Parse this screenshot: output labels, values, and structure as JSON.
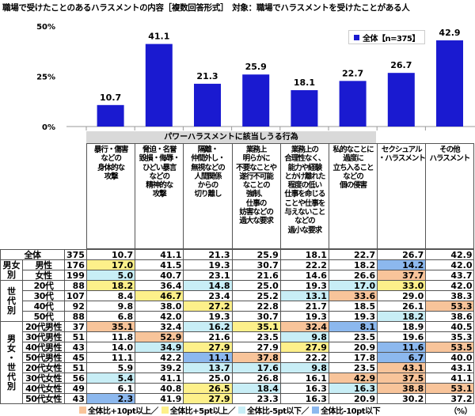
{
  "title": "職場で受けたことのあるハラスメントの内容［複数回答形式］　対象：職場でハラスメントを受けたことがある人",
  "group_header": "パワーハラスメントに該当しうる行為",
  "chart_data": {
    "type": "bar",
    "categories": [
      "暴行・傷害\nなどの\n身体的な\n攻撃",
      "脅迫・名誉\n毀損・侮辱・\nひどい暴言\nなどの\n精神的な\n攻撃",
      "隔離・\n仲間外し・\n無視などの\n人間関係\nからの\n切り離し",
      "業務上\n明らかに\n不要なことや\n遂行不可能\nなことの\n強制、\n仕事の\n妨害などの\n過大な要求",
      "業務上の\n合理性なく、\n能力や経験\nとかけ離れた\n程度の低い\n仕事を命じる\nことや仕事を\n与えないこと\nなどの\n過小な要求",
      "私的なことに\n過度に\n立ち入ること\nなどの\n個の侵害",
      "セクシュアル\n・ハラスメント",
      "その他\nハラスメント"
    ],
    "series": [
      {
        "name": "全体【n=375】",
        "values": [
          10.7,
          41.1,
          21.3,
          25.9,
          18.1,
          22.7,
          26.7,
          42.9
        ]
      }
    ],
    "ylim": [
      0,
      50
    ],
    "yticks": [
      "0%",
      "25%",
      "50%"
    ],
    "bar_color": "#1a1ad0",
    "legend": "top-right"
  },
  "table": {
    "rows": [
      {
        "group": "",
        "label": "全体",
        "n": "375",
        "values": [
          "10.7",
          "41.1",
          "21.3",
          "25.9",
          "18.1",
          "22.7",
          "26.7",
          "42.9"
        ],
        "hl": [
          0,
          0,
          0,
          0,
          0,
          0,
          0,
          0
        ]
      },
      {
        "group": "男女\n別",
        "label": "男性",
        "n": "176",
        "values": [
          "17.0",
          "41.5",
          "19.3",
          "30.7",
          "22.2",
          "18.2",
          "14.2",
          "42.0"
        ],
        "hl": [
          2,
          0,
          0,
          0,
          0,
          0,
          4,
          0
        ]
      },
      {
        "group": "",
        "label": "女性",
        "n": "199",
        "values": [
          "5.0",
          "40.7",
          "23.1",
          "21.6",
          "14.6",
          "26.6",
          "37.7",
          "43.7"
        ],
        "hl": [
          3,
          0,
          0,
          0,
          0,
          0,
          1,
          0
        ]
      },
      {
        "group": "世\n代\n別",
        "label": "20代",
        "n": "88",
        "values": [
          "18.2",
          "36.4",
          "14.8",
          "25.0",
          "19.3",
          "17.0",
          "33.0",
          "42.0"
        ],
        "hl": [
          2,
          0,
          3,
          0,
          0,
          3,
          2,
          0
        ]
      },
      {
        "group": "",
        "label": "30代",
        "n": "107",
        "values": [
          "8.4",
          "46.7",
          "23.4",
          "25.2",
          "13.1",
          "33.6",
          "29.0",
          "38.3"
        ],
        "hl": [
          0,
          2,
          0,
          0,
          3,
          1,
          0,
          0
        ]
      },
      {
        "group": "",
        "label": "40代",
        "n": "92",
        "values": [
          "9.8",
          "38.0",
          "27.2",
          "22.8",
          "21.7",
          "18.5",
          "26.1",
          "53.3"
        ],
        "hl": [
          0,
          0,
          2,
          0,
          0,
          0,
          0,
          1
        ]
      },
      {
        "group": "",
        "label": "50代",
        "n": "88",
        "values": [
          "6.8",
          "42.0",
          "19.3",
          "30.7",
          "19.3",
          "19.3",
          "18.2",
          "38.6"
        ],
        "hl": [
          0,
          0,
          0,
          0,
          0,
          0,
          3,
          0
        ]
      },
      {
        "group": "男\n女\n・\n世\n代\n別",
        "label": "20代男性",
        "n": "37",
        "values": [
          "35.1",
          "32.4",
          "16.2",
          "35.1",
          "32.4",
          "8.1",
          "18.9",
          "40.5"
        ],
        "hl": [
          1,
          0,
          3,
          2,
          1,
          4,
          0,
          0
        ]
      },
      {
        "group": "",
        "label": "30代男性",
        "n": "51",
        "values": [
          "11.8",
          "52.9",
          "21.6",
          "23.5",
          "9.8",
          "23.5",
          "19.6",
          "35.3"
        ],
        "hl": [
          0,
          1,
          0,
          0,
          3,
          0,
          0,
          0
        ]
      },
      {
        "group": "",
        "label": "40代男性",
        "n": "43",
        "values": [
          "14.0",
          "34.9",
          "27.9",
          "27.9",
          "27.9",
          "20.9",
          "11.6",
          "53.5"
        ],
        "hl": [
          0,
          3,
          2,
          0,
          2,
          0,
          4,
          1
        ]
      },
      {
        "group": "",
        "label": "50代男性",
        "n": "45",
        "values": [
          "11.1",
          "42.2",
          "11.1",
          "37.8",
          "22.2",
          "17.8",
          "6.7",
          "40.0"
        ],
        "hl": [
          0,
          0,
          4,
          1,
          0,
          0,
          4,
          0
        ]
      },
      {
        "group": "",
        "label": "20代女性",
        "n": "51",
        "values": [
          "5.9",
          "39.2",
          "13.7",
          "17.6",
          "9.8",
          "23.5",
          "43.1",
          "43.1"
        ],
        "hl": [
          0,
          0,
          3,
          3,
          3,
          0,
          1,
          0
        ]
      },
      {
        "group": "",
        "label": "30代女性",
        "n": "56",
        "values": [
          "5.4",
          "41.1",
          "25.0",
          "26.8",
          "16.1",
          "42.9",
          "37.5",
          "41.1"
        ],
        "hl": [
          3,
          0,
          0,
          0,
          0,
          1,
          1,
          0
        ]
      },
      {
        "group": "",
        "label": "40代女性",
        "n": "49",
        "values": [
          "6.1",
          "40.8",
          "26.5",
          "18.4",
          "16.3",
          "16.3",
          "38.8",
          "53.1"
        ],
        "hl": [
          0,
          0,
          2,
          3,
          0,
          3,
          1,
          1
        ]
      },
      {
        "group": "",
        "label": "50代女性",
        "n": "43",
        "values": [
          "2.3",
          "41.9",
          "27.9",
          "23.3",
          "16.3",
          "20.9",
          "30.2",
          "37.2"
        ],
        "hl": [
          4,
          0,
          2,
          0,
          0,
          0,
          0,
          0
        ]
      }
    ],
    "highlight_colors": [
      "",
      "#f8c49a",
      "#fdf08a",
      "#c8eef6",
      "#8cb8ee"
    ]
  },
  "footer": {
    "legend": [
      "全体比+10pt以上／",
      "全体比+5pt以上／",
      "全体比-5pt以下／",
      "全体比-10pt以下"
    ],
    "unit": "（%）"
  }
}
